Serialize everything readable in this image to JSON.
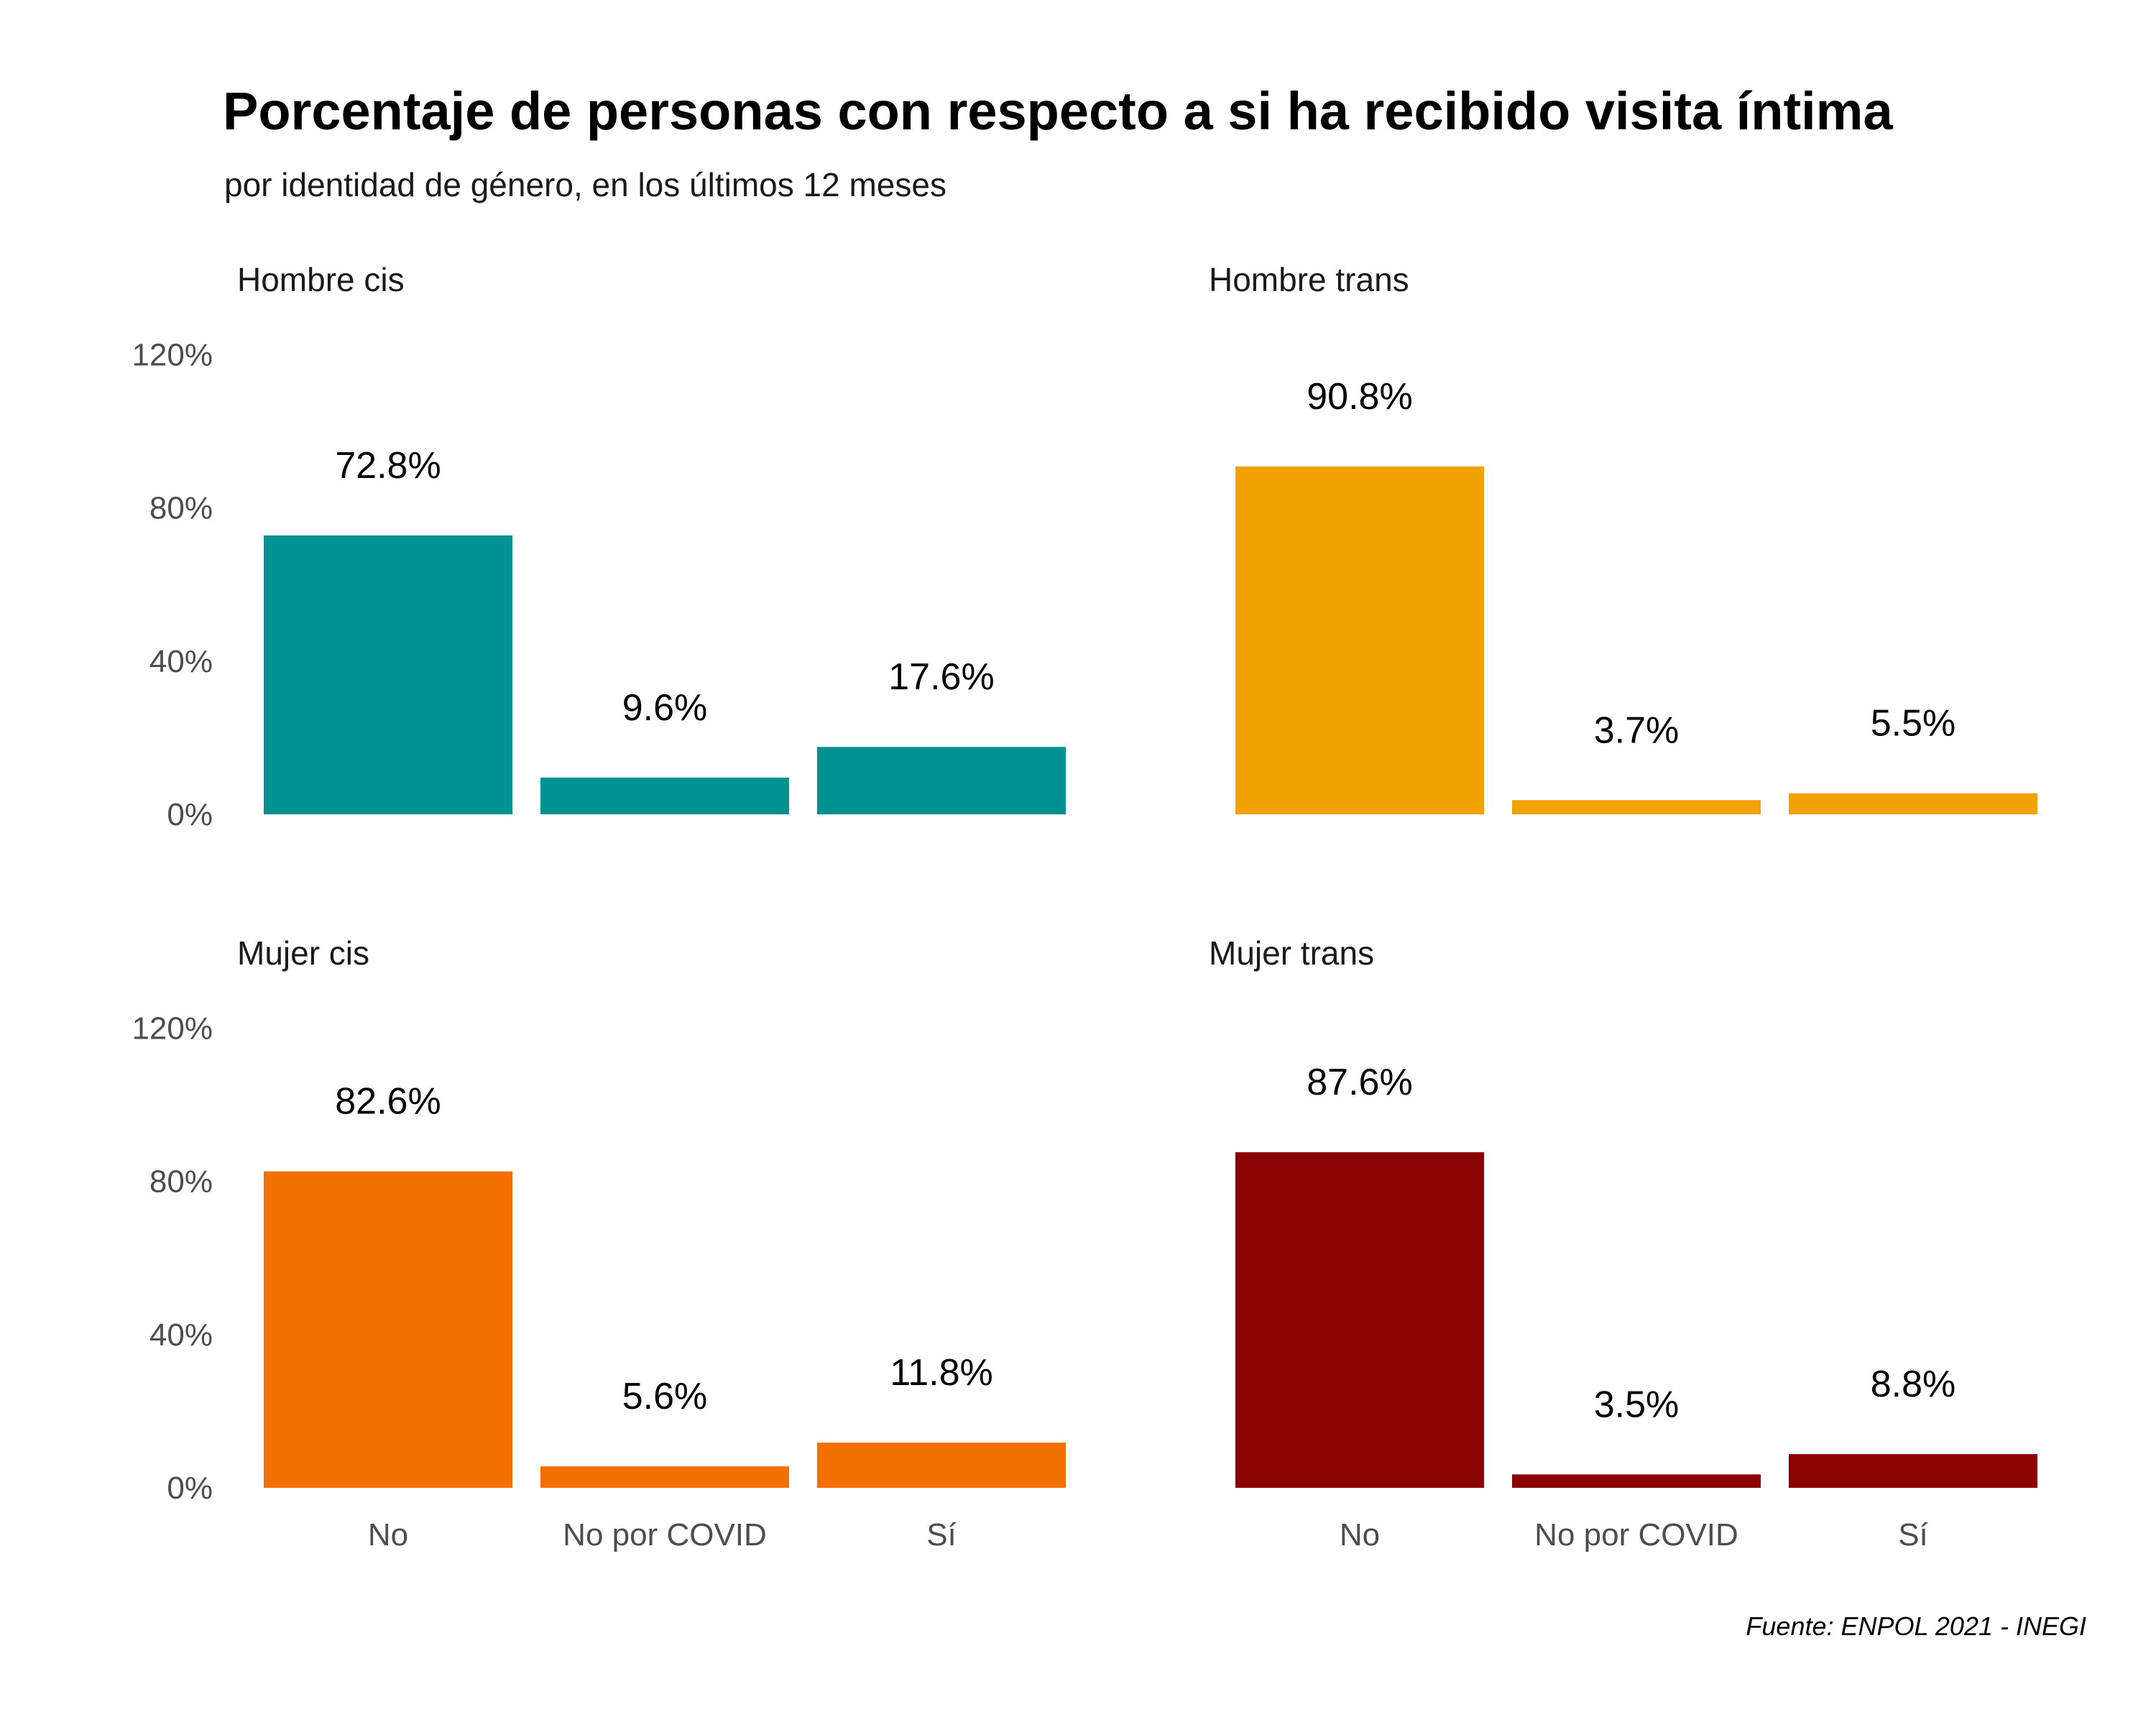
{
  "title": "Porcentaje de personas con respecto a si ha recibido visita íntima",
  "subtitle": "por identidad de género, en los últimos 12 meses",
  "caption": "Fuente: ENPOL 2021 - INEGI",
  "chart_data": {
    "type": "bar",
    "layout": "facet-grid-2x2",
    "categories": [
      "No",
      "No por COVID",
      "Sí"
    ],
    "y_ticks": [
      "0%",
      "40%",
      "80%",
      "120%"
    ],
    "ylim": [
      0,
      120
    ],
    "y_unit": "%",
    "grid": false,
    "legend": "none",
    "panels": [
      {
        "name": "Hombre cis",
        "color": "#009191",
        "values": [
          72.8,
          9.6,
          17.6
        ],
        "labels": [
          "72.8%",
          "9.6%",
          "17.6%"
        ]
      },
      {
        "name": "Hombre trans",
        "color": "#F2A200",
        "values": [
          90.8,
          3.7,
          5.5
        ],
        "labels": [
          "90.8%",
          "3.7%",
          "5.5%"
        ]
      },
      {
        "name": "Mujer cis",
        "color": "#F27000",
        "values": [
          82.6,
          5.6,
          11.8
        ],
        "labels": [
          "82.6%",
          "5.6%",
          "11.8%"
        ]
      },
      {
        "name": "Mujer trans",
        "color": "#8B0000",
        "values": [
          87.6,
          3.5,
          8.8
        ],
        "labels": [
          "87.6%",
          "3.5%",
          "8.8%"
        ]
      }
    ]
  }
}
